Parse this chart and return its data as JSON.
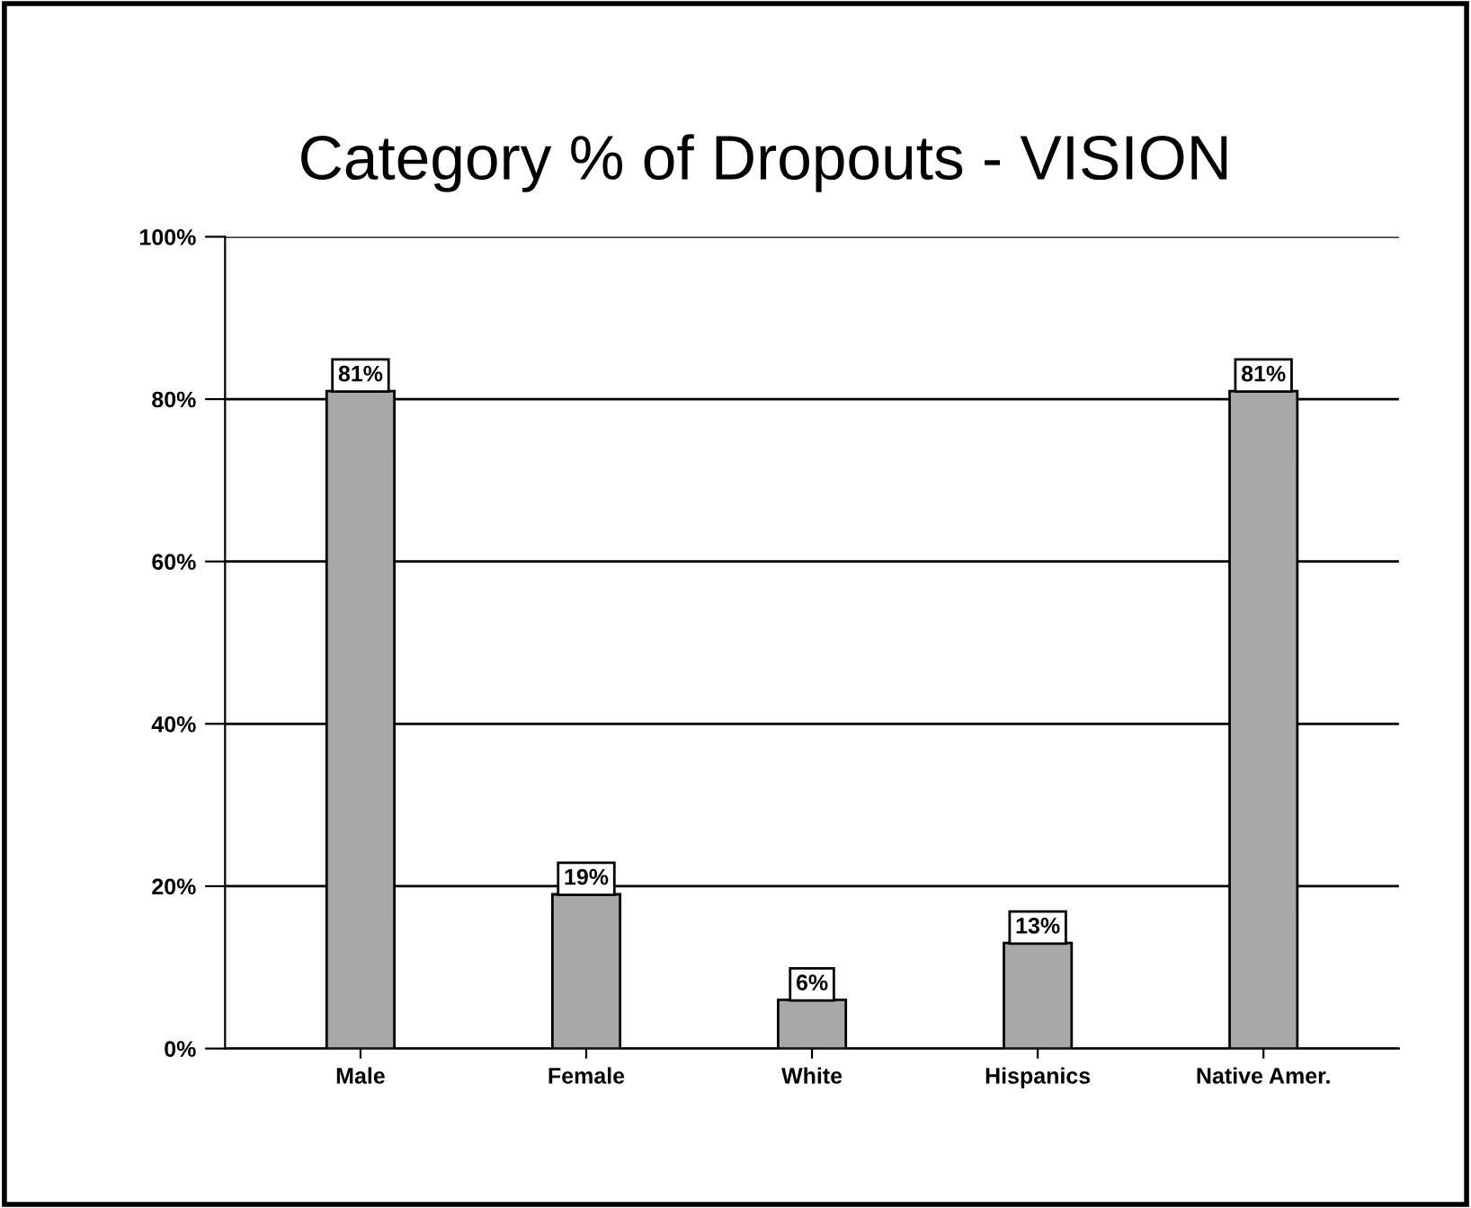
{
  "chart_data": {
    "type": "bar",
    "title": "Category % of Dropouts - VISION",
    "categories": [
      "Male",
      "Female",
      "White",
      "Hispanics",
      "Native Amer."
    ],
    "values": [
      81,
      19,
      6,
      13,
      81
    ],
    "value_labels": [
      "81%",
      "19%",
      "6%",
      "13%",
      "81%"
    ],
    "color": "#a8a8a8",
    "ylim": [
      0,
      100
    ],
    "yticks": [
      {
        "value": 0,
        "label": "0%"
      },
      {
        "value": 20,
        "label": "20%"
      },
      {
        "value": 40,
        "label": "40%"
      },
      {
        "value": 60,
        "label": "60%"
      },
      {
        "value": 80,
        "label": "80%"
      },
      {
        "value": 100,
        "label": "100%"
      }
    ],
    "grid": "y",
    "legend": false
  }
}
